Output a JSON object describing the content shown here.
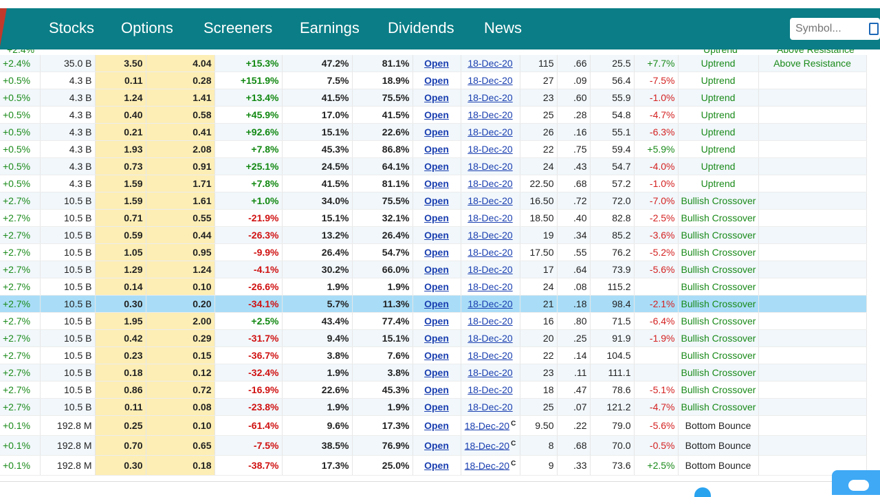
{
  "nav": {
    "items": [
      "Stocks",
      "Options",
      "Screeners",
      "Earnings",
      "Dividends",
      "News"
    ],
    "search_placeholder": "Symbol..."
  },
  "colors": {
    "nav_bg": "#0b7d86",
    "positive": "#1a8a1a",
    "negative": "#d42020",
    "highlight": "#a9ddf7",
    "bid_ask_bg": "#fdeeb5",
    "link": "#1a3fb0"
  },
  "cut_row": {
    "chg": "+2.4%",
    "trend": "Uptrend",
    "signal": "Above Resistance"
  },
  "rows": [
    {
      "chg": "+2.4%",
      "mcap": "35.0 B",
      "bid": "3.50",
      "ask": "4.04",
      "pct": "+15.3%",
      "p1": "47.2%",
      "p2": "81.1%",
      "link": "Open",
      "exp": "18-Dec-20",
      "c": "",
      "strike": "115",
      "delta": ".66",
      "iv": "25.5",
      "ivchg": "+7.7%",
      "trend": "Uptrend",
      "signal": "Above Resistance"
    },
    {
      "chg": "+0.5%",
      "mcap": "4.3 B",
      "bid": "0.11",
      "ask": "0.28",
      "pct": "+151.9%",
      "p1": "7.5%",
      "p2": "18.9%",
      "link": "Open",
      "exp": "18-Dec-20",
      "c": "",
      "strike": "27",
      "delta": ".09",
      "iv": "56.4",
      "ivchg": "-7.5%",
      "trend": "Uptrend",
      "signal": ""
    },
    {
      "chg": "+0.5%",
      "mcap": "4.3 B",
      "bid": "1.24",
      "ask": "1.41",
      "pct": "+13.4%",
      "p1": "41.5%",
      "p2": "75.5%",
      "link": "Open",
      "exp": "18-Dec-20",
      "c": "",
      "strike": "23",
      "delta": ".60",
      "iv": "55.9",
      "ivchg": "-1.0%",
      "trend": "Uptrend",
      "signal": ""
    },
    {
      "chg": "+0.5%",
      "mcap": "4.3 B",
      "bid": "0.40",
      "ask": "0.58",
      "pct": "+45.9%",
      "p1": "17.0%",
      "p2": "41.5%",
      "link": "Open",
      "exp": "18-Dec-20",
      "c": "",
      "strike": "25",
      "delta": ".28",
      "iv": "54.8",
      "ivchg": "-4.7%",
      "trend": "Uptrend",
      "signal": ""
    },
    {
      "chg": "+0.5%",
      "mcap": "4.3 B",
      "bid": "0.21",
      "ask": "0.41",
      "pct": "+92.6%",
      "p1": "15.1%",
      "p2": "22.6%",
      "link": "Open",
      "exp": "18-Dec-20",
      "c": "",
      "strike": "26",
      "delta": ".16",
      "iv": "55.1",
      "ivchg": "-6.3%",
      "trend": "Uptrend",
      "signal": ""
    },
    {
      "chg": "+0.5%",
      "mcap": "4.3 B",
      "bid": "1.93",
      "ask": "2.08",
      "pct": "+7.8%",
      "p1": "45.3%",
      "p2": "86.8%",
      "link": "Open",
      "exp": "18-Dec-20",
      "c": "",
      "strike": "22",
      "delta": ".75",
      "iv": "59.4",
      "ivchg": "+5.9%",
      "trend": "Uptrend",
      "signal": ""
    },
    {
      "chg": "+0.5%",
      "mcap": "4.3 B",
      "bid": "0.73",
      "ask": "0.91",
      "pct": "+25.1%",
      "p1": "24.5%",
      "p2": "64.1%",
      "link": "Open",
      "exp": "18-Dec-20",
      "c": "",
      "strike": "24",
      "delta": ".43",
      "iv": "54.7",
      "ivchg": "-4.0%",
      "trend": "Uptrend",
      "signal": ""
    },
    {
      "chg": "+0.5%",
      "mcap": "4.3 B",
      "bid": "1.59",
      "ask": "1.71",
      "pct": "+7.8%",
      "p1": "41.5%",
      "p2": "81.1%",
      "link": "Open",
      "exp": "18-Dec-20",
      "c": "",
      "strike": "22.50",
      "delta": ".68",
      "iv": "57.2",
      "ivchg": "-1.0%",
      "trend": "Uptrend",
      "signal": ""
    },
    {
      "chg": "+2.7%",
      "mcap": "10.5 B",
      "bid": "1.59",
      "ask": "1.61",
      "pct": "+1.0%",
      "p1": "34.0%",
      "p2": "75.5%",
      "link": "Open",
      "exp": "18-Dec-20",
      "c": "",
      "strike": "16.50",
      "delta": ".72",
      "iv": "72.0",
      "ivchg": "-7.0%",
      "trend": "Bullish Crossover",
      "signal": ""
    },
    {
      "chg": "+2.7%",
      "mcap": "10.5 B",
      "bid": "0.71",
      "ask": "0.55",
      "pct": "-21.9%",
      "p1": "15.1%",
      "p2": "32.1%",
      "link": "Open",
      "exp": "18-Dec-20",
      "c": "",
      "strike": "18.50",
      "delta": ".40",
      "iv": "82.8",
      "ivchg": "-2.5%",
      "trend": "Bullish Crossover",
      "signal": ""
    },
    {
      "chg": "+2.7%",
      "mcap": "10.5 B",
      "bid": "0.59",
      "ask": "0.44",
      "pct": "-26.3%",
      "p1": "13.2%",
      "p2": "26.4%",
      "link": "Open",
      "exp": "18-Dec-20",
      "c": "",
      "strike": "19",
      "delta": ".34",
      "iv": "85.2",
      "ivchg": "-3.6%",
      "trend": "Bullish Crossover",
      "signal": ""
    },
    {
      "chg": "+2.7%",
      "mcap": "10.5 B",
      "bid": "1.05",
      "ask": "0.95",
      "pct": "-9.9%",
      "p1": "26.4%",
      "p2": "54.7%",
      "link": "Open",
      "exp": "18-Dec-20",
      "c": "",
      "strike": "17.50",
      "delta": ".55",
      "iv": "76.2",
      "ivchg": "-5.2%",
      "trend": "Bullish Crossover",
      "signal": ""
    },
    {
      "chg": "+2.7%",
      "mcap": "10.5 B",
      "bid": "1.29",
      "ask": "1.24",
      "pct": "-4.1%",
      "p1": "30.2%",
      "p2": "66.0%",
      "link": "Open",
      "exp": "18-Dec-20",
      "c": "",
      "strike": "17",
      "delta": ".64",
      "iv": "73.9",
      "ivchg": "-5.6%",
      "trend": "Bullish Crossover",
      "signal": ""
    },
    {
      "chg": "+2.7%",
      "mcap": "10.5 B",
      "bid": "0.14",
      "ask": "0.10",
      "pct": "-26.6%",
      "p1": "1.9%",
      "p2": "1.9%",
      "link": "Open",
      "exp": "18-Dec-20",
      "c": "",
      "strike": "24",
      "delta": ".08",
      "iv": "115.2",
      "ivchg": "",
      "trend": "Bullish Crossover",
      "signal": ""
    },
    {
      "chg": "+2.7%",
      "mcap": "10.5 B",
      "bid": "0.30",
      "ask": "0.20",
      "pct": "-34.1%",
      "p1": "5.7%",
      "p2": "11.3%",
      "link": "Open",
      "exp": "18-Dec-20",
      "c": "",
      "strike": "21",
      "delta": ".18",
      "iv": "98.4",
      "ivchg": "-2.1%",
      "trend": "Bullish Crossover",
      "signal": "",
      "highlight": true
    },
    {
      "chg": "+2.7%",
      "mcap": "10.5 B",
      "bid": "1.95",
      "ask": "2.00",
      "pct": "+2.5%",
      "p1": "43.4%",
      "p2": "77.4%",
      "link": "Open",
      "exp": "18-Dec-20",
      "c": "",
      "strike": "16",
      "delta": ".80",
      "iv": "71.5",
      "ivchg": "-6.4%",
      "trend": "Bullish Crossover",
      "signal": ""
    },
    {
      "chg": "+2.7%",
      "mcap": "10.5 B",
      "bid": "0.42",
      "ask": "0.29",
      "pct": "-31.7%",
      "p1": "9.4%",
      "p2": "15.1%",
      "link": "Open",
      "exp": "18-Dec-20",
      "c": "",
      "strike": "20",
      "delta": ".25",
      "iv": "91.9",
      "ivchg": "-1.9%",
      "trend": "Bullish Crossover",
      "signal": ""
    },
    {
      "chg": "+2.7%",
      "mcap": "10.5 B",
      "bid": "0.23",
      "ask": "0.15",
      "pct": "-36.7%",
      "p1": "3.8%",
      "p2": "7.6%",
      "link": "Open",
      "exp": "18-Dec-20",
      "c": "",
      "strike": "22",
      "delta": ".14",
      "iv": "104.5",
      "ivchg": "",
      "trend": "Bullish Crossover",
      "signal": ""
    },
    {
      "chg": "+2.7%",
      "mcap": "10.5 B",
      "bid": "0.18",
      "ask": "0.12",
      "pct": "-32.4%",
      "p1": "1.9%",
      "p2": "3.8%",
      "link": "Open",
      "exp": "18-Dec-20",
      "c": "",
      "strike": "23",
      "delta": ".11",
      "iv": "111.1",
      "ivchg": "",
      "trend": "Bullish Crossover",
      "signal": ""
    },
    {
      "chg": "+2.7%",
      "mcap": "10.5 B",
      "bid": "0.86",
      "ask": "0.72",
      "pct": "-16.9%",
      "p1": "22.6%",
      "p2": "45.3%",
      "link": "Open",
      "exp": "18-Dec-20",
      "c": "",
      "strike": "18",
      "delta": ".47",
      "iv": "78.6",
      "ivchg": "-5.1%",
      "trend": "Bullish Crossover",
      "signal": ""
    },
    {
      "chg": "+2.7%",
      "mcap": "10.5 B",
      "bid": "0.11",
      "ask": "0.08",
      "pct": "-23.8%",
      "p1": "1.9%",
      "p2": "1.9%",
      "link": "Open",
      "exp": "18-Dec-20",
      "c": "",
      "strike": "25",
      "delta": ".07",
      "iv": "121.2",
      "ivchg": "-4.7%",
      "trend": "Bullish Crossover",
      "signal": ""
    },
    {
      "chg": "+0.1%",
      "mcap": "192.8 M",
      "bid": "0.25",
      "ask": "0.10",
      "pct": "-61.4%",
      "p1": "9.6%",
      "p2": "17.3%",
      "link": "Open",
      "exp": "18-Dec-20",
      "c": "C",
      "strike": "9.50",
      "delta": ".22",
      "iv": "79.0",
      "ivchg": "-5.6%",
      "trend": "Bottom Bounce",
      "signal": "",
      "tall": true
    },
    {
      "chg": "+0.1%",
      "mcap": "192.8 M",
      "bid": "0.70",
      "ask": "0.65",
      "pct": "-7.5%",
      "p1": "38.5%",
      "p2": "76.9%",
      "link": "Open",
      "exp": "18-Dec-20",
      "c": "C",
      "strike": "8",
      "delta": ".68",
      "iv": "70.0",
      "ivchg": "-0.5%",
      "trend": "Bottom Bounce",
      "signal": "",
      "tall": true
    },
    {
      "chg": "+0.1%",
      "mcap": "192.8 M",
      "bid": "0.30",
      "ask": "0.18",
      "pct": "-38.7%",
      "p1": "17.3%",
      "p2": "25.0%",
      "link": "Open",
      "exp": "18-Dec-20",
      "c": "C",
      "strike": "9",
      "delta": ".33",
      "iv": "73.6",
      "ivchg": "+2.5%",
      "trend": "Bottom Bounce",
      "signal": "",
      "tall": true
    }
  ]
}
